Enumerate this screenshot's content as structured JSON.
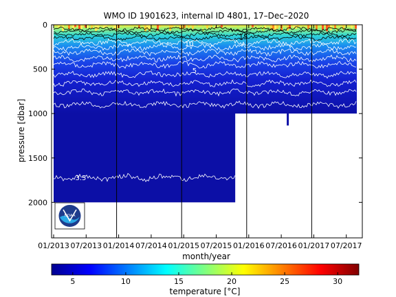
{
  "chart_data": {
    "type": "heatmap",
    "title": "WMO ID 1901623, internal ID 4801, 17–Dec–2020",
    "xlabel": "month/year",
    "ylabel": "pressure [dbar]",
    "colorbar_label": "temperature [°C]",
    "x_ticks": [
      "01/2013",
      "07/2013",
      "01/2014",
      "07/2014",
      "01/2015",
      "07/2015",
      "01/2016",
      "07/2016",
      "01/2017",
      "07/2017"
    ],
    "y_ticks": [
      0,
      500,
      1000,
      1500,
      2000
    ],
    "y_range": [
      0,
      2400
    ],
    "colorbar_ticks": [
      5,
      10,
      15,
      20,
      25,
      30
    ],
    "colorbar_range": [
      3,
      32
    ],
    "year_markers": [
      "01/2014",
      "01/2015",
      "01/2016",
      "01/2017"
    ],
    "profile_depth": [
      {
        "period": "01/2013-10/2015",
        "max_pressure_dbar": 2000
      },
      {
        "period": "11/2015-07/2017",
        "max_pressure_dbar": 1000
      }
    ],
    "contour_labels": [
      {
        "label": "15",
        "date": "12/2015",
        "pressure_dbar": 130
      },
      {
        "label": "10",
        "date": "02/2015",
        "pressure_dbar": 210
      },
      {
        "label": "5",
        "date": "03/2015",
        "pressure_dbar": 510
      },
      {
        "label": "3.5",
        "date": "06/2013",
        "pressure_dbar": 1720
      }
    ],
    "isotherm_depths": [
      {
        "temp": 20,
        "pressure_dbar": 50
      },
      {
        "temp": 18,
        "pressure_dbar": 75
      },
      {
        "temp": 16,
        "pressure_dbar": 110
      },
      {
        "temp": 14,
        "pressure_dbar": 150
      },
      {
        "temp": 12,
        "pressure_dbar": 200
      },
      {
        "temp": 10,
        "pressure_dbar": 250
      },
      {
        "temp": 9,
        "pressure_dbar": 310
      },
      {
        "temp": 8,
        "pressure_dbar": 380
      },
      {
        "temp": 7,
        "pressure_dbar": 450
      },
      {
        "temp": 6,
        "pressure_dbar": 560
      },
      {
        "temp": 5,
        "pressure_dbar": 660
      },
      {
        "temp": 4.5,
        "pressure_dbar": 760
      },
      {
        "temp": 4,
        "pressure_dbar": 900
      },
      {
        "temp": 3.5,
        "pressure_dbar": 1720
      }
    ],
    "has_logo": true,
    "logo_text": "NOAA"
  }
}
